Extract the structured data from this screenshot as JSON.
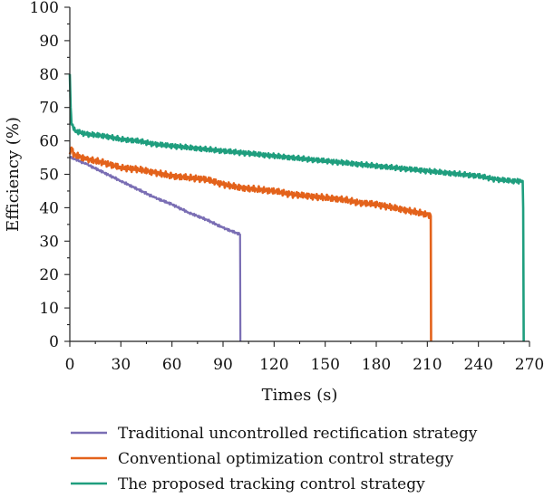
{
  "chart_data": {
    "type": "line",
    "xlabel": "Times (s)",
    "ylabel": "Efficiency (%)",
    "xlim": [
      0,
      270
    ],
    "ylim": [
      0,
      100
    ],
    "xticks": [
      0,
      30,
      60,
      90,
      120,
      150,
      180,
      210,
      240,
      270
    ],
    "yticks": [
      0,
      10,
      20,
      30,
      40,
      50,
      60,
      70,
      80,
      90,
      100
    ],
    "grid": false,
    "legend_position": "bottom",
    "series": [
      {
        "name": "Traditional uncontrolled rectification strategy",
        "color": "#7a6eb4",
        "x": [
          0,
          1,
          10,
          20,
          30,
          40,
          50,
          60,
          70,
          80,
          90,
          95,
          100,
          100.2
        ],
        "y": [
          55,
          55,
          53,
          50.5,
          48,
          45.5,
          43,
          41,
          38.5,
          36.5,
          34,
          33,
          32,
          0
        ]
      },
      {
        "name": "Conventional optimization control strategy",
        "color": "#e3621b",
        "x": [
          0,
          1,
          2,
          10,
          20,
          30,
          40,
          50,
          60,
          70,
          80,
          90,
          100,
          110,
          120,
          130,
          140,
          150,
          160,
          170,
          180,
          190,
          200,
          210,
          212,
          212.2
        ],
        "y": [
          56,
          58,
          56,
          54.5,
          53.5,
          52,
          51.5,
          50.5,
          49.5,
          49,
          48.5,
          47,
          46,
          45.5,
          45,
          44,
          43.5,
          43,
          42.5,
          41.5,
          41,
          40,
          39,
          38,
          37.5,
          0
        ]
      },
      {
        "name": "The proposed tracking control strategy",
        "color": "#1f9e7e",
        "x": [
          0,
          0.5,
          1,
          2,
          3,
          10,
          20,
          30,
          40,
          50,
          60,
          70,
          80,
          90,
          100,
          110,
          120,
          130,
          140,
          150,
          160,
          170,
          180,
          190,
          200,
          210,
          220,
          230,
          240,
          250,
          260,
          266,
          266.3,
          266.6
        ],
        "y": [
          80,
          70,
          65,
          64,
          63,
          62,
          61.5,
          60.5,
          60,
          59,
          58.5,
          58,
          57.5,
          57,
          56.5,
          56,
          55.5,
          55,
          54.5,
          54,
          53.5,
          53,
          52.5,
          52,
          51.5,
          51,
          50.5,
          50,
          49.5,
          48.5,
          48,
          48,
          40,
          0
        ]
      }
    ]
  }
}
